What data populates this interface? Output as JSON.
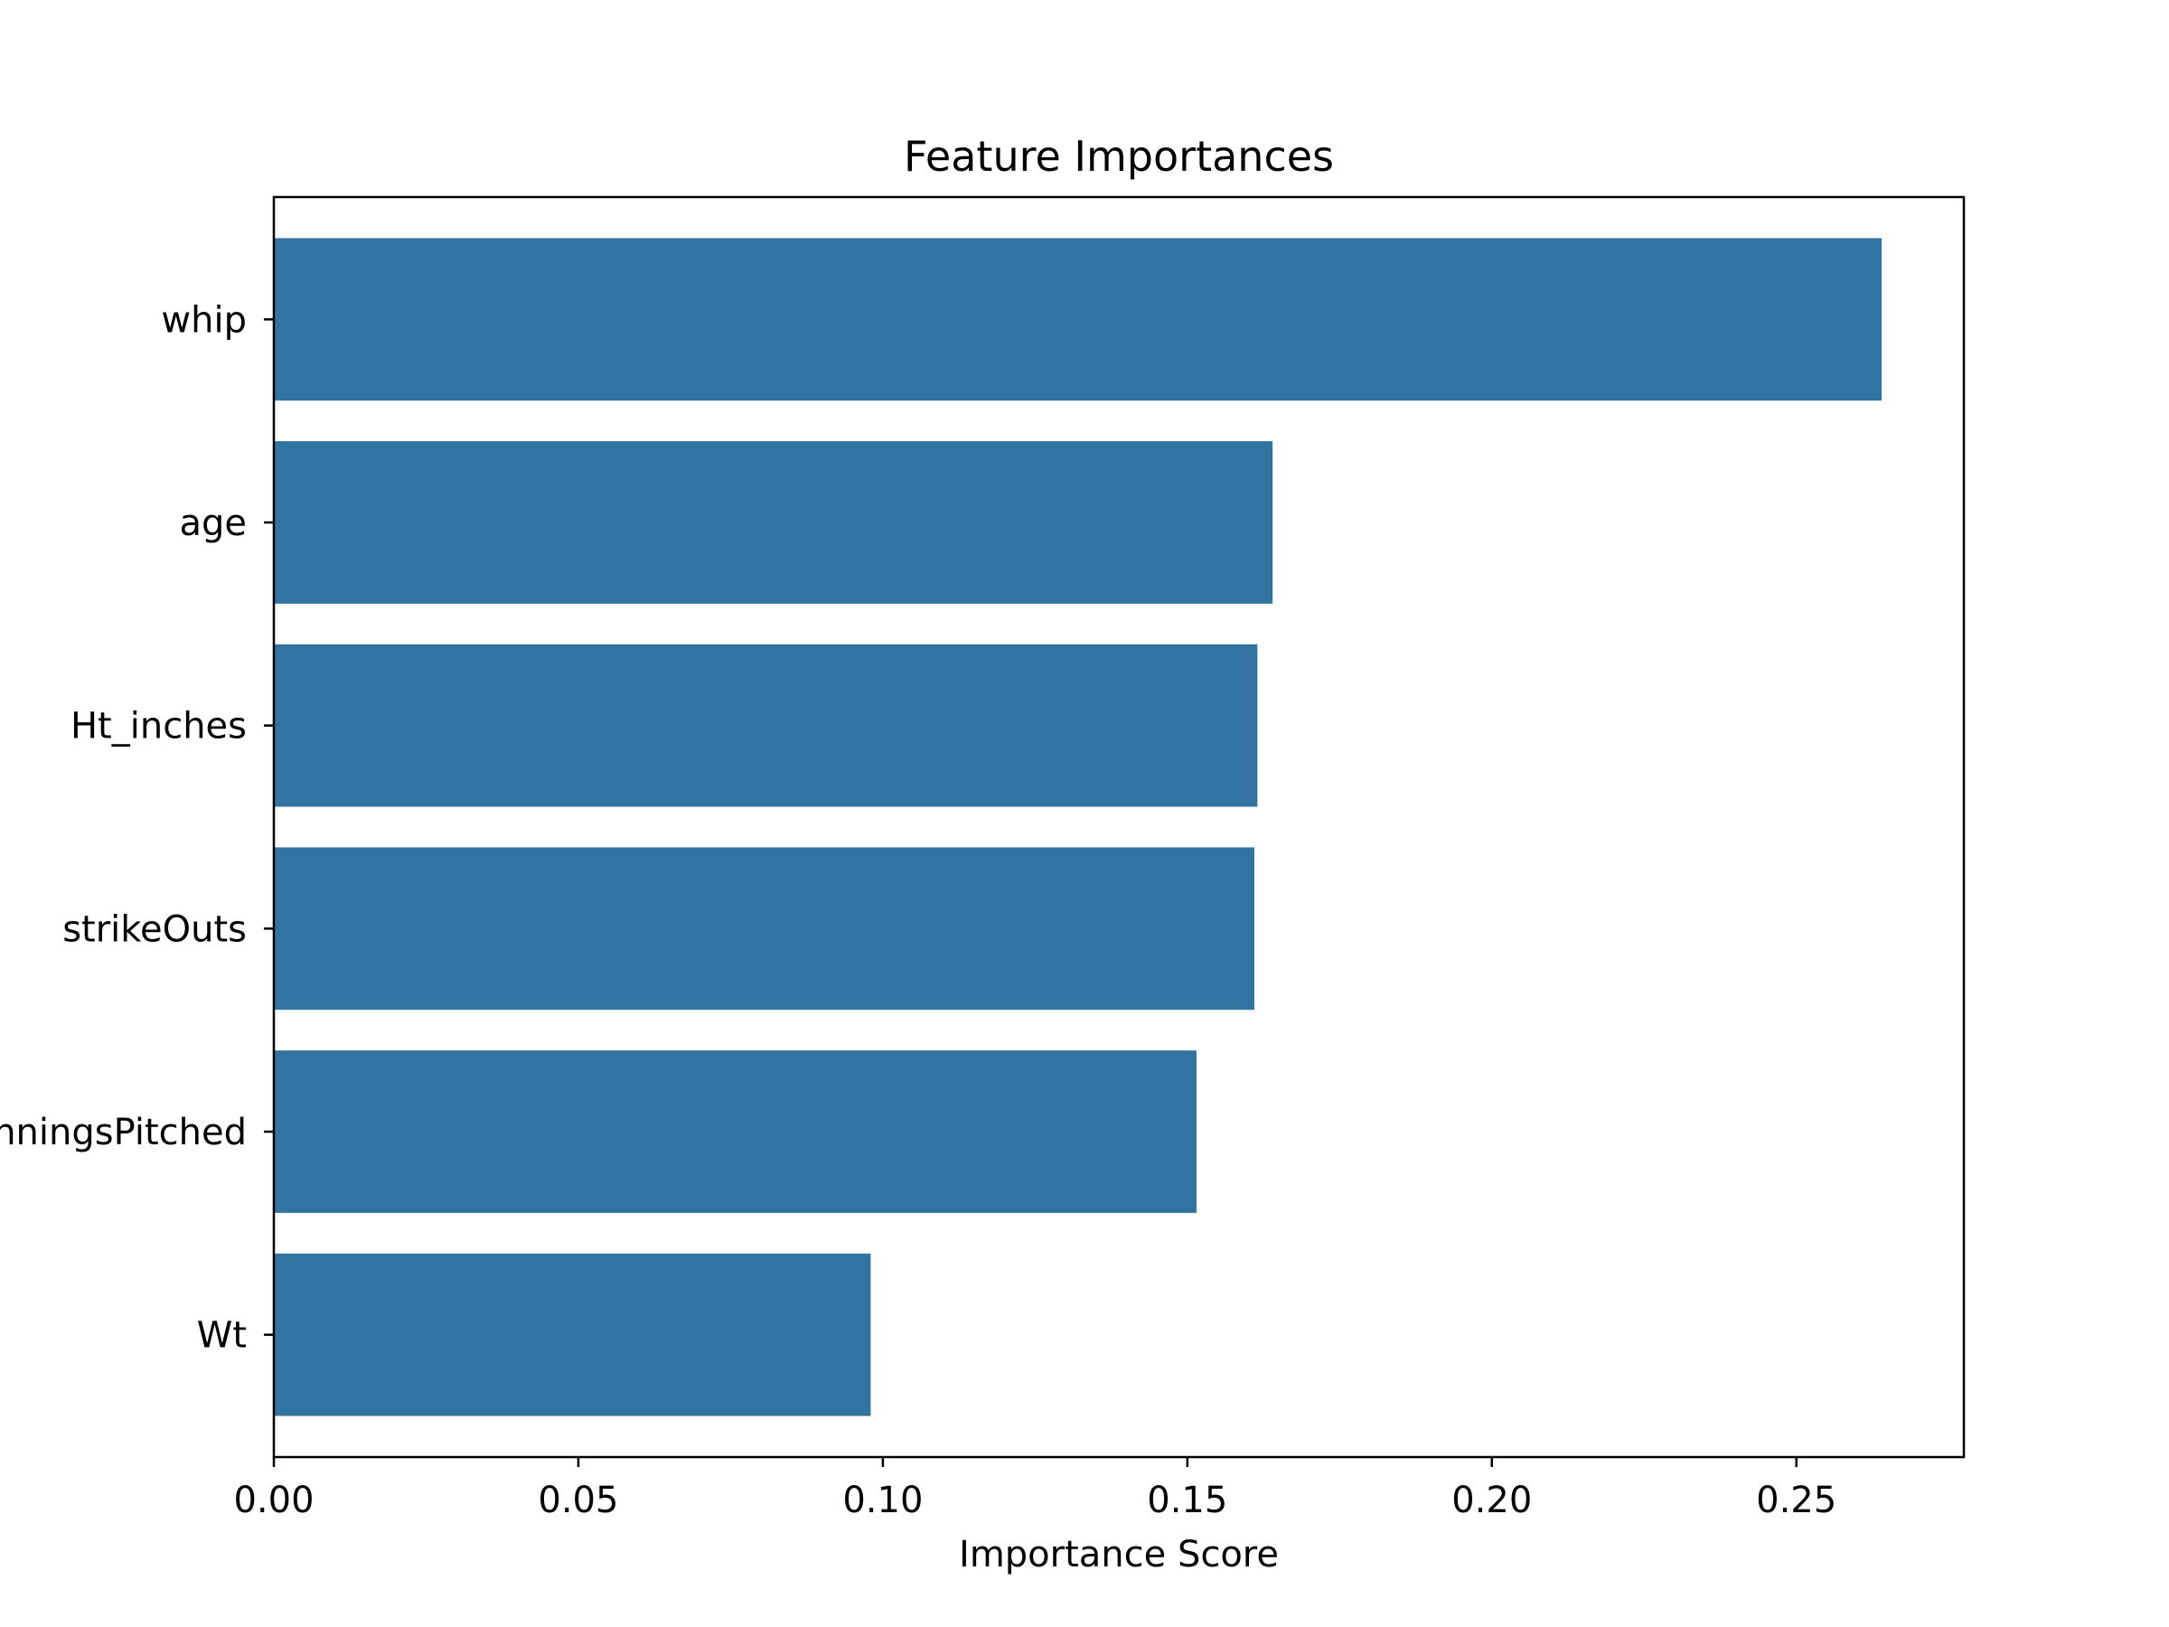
{
  "chart_data": {
    "type": "bar",
    "orientation": "horizontal",
    "title": "Feature Importances",
    "xlabel": "Importance Score",
    "ylabel": "",
    "categories": [
      "whip",
      "age",
      "Ht_inches",
      "strikeOuts",
      "inningsPitched",
      "Wt"
    ],
    "values": [
      0.264,
      0.164,
      0.1615,
      0.161,
      0.1515,
      0.098
    ],
    "xlim": [
      0,
      0.2775
    ],
    "xticks": [
      0.0,
      0.05,
      0.1,
      0.15,
      0.2,
      0.25
    ],
    "xtick_labels": [
      "0.00",
      "0.05",
      "0.10",
      "0.15",
      "0.20",
      "0.25"
    ],
    "bar_color": "#3274a1",
    "grid": false
  }
}
